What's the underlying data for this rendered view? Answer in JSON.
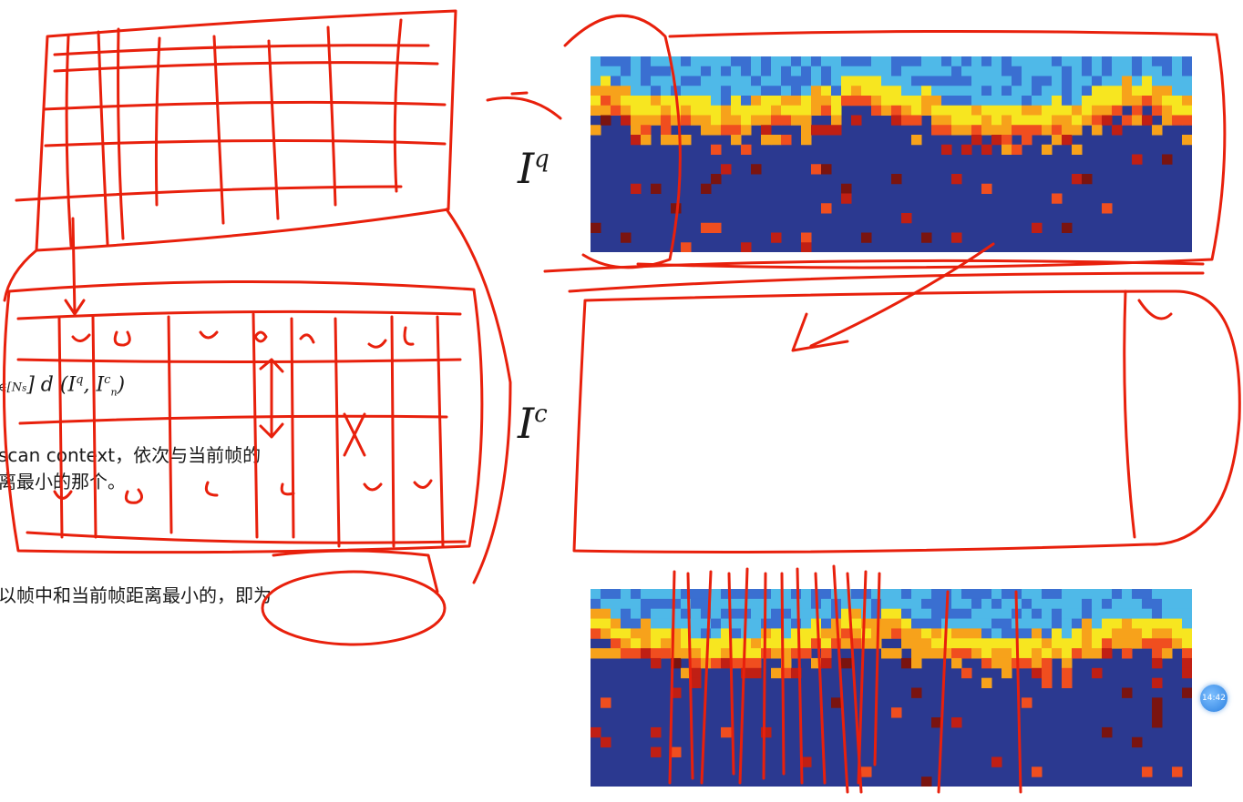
{
  "slide": {
    "label_query": "I",
    "label_query_sup": "q",
    "label_candidate": "I",
    "label_candidate_sup": "c",
    "formula_left": "∈[N",
    "formula_left_sub": "s",
    "formula_right": "] d (I",
    "formula_q": "q",
    "formula_mid": ", I",
    "formula_c": "c",
    "formula_n": "n",
    "formula_close": ")",
    "text_line1": "scan context，依次与当前帧的",
    "text_line2": "离最小的那个。",
    "text_line3": "以帧中和当前帧距离最小的，即为"
  },
  "overlay": {
    "badge_label": "14:42"
  },
  "colors": {
    "annotation": "#e8200c",
    "heatmap_background": "#2b3990",
    "heatmap_palette": [
      "#2b3990",
      "#3a6fd1",
      "#4fb9e8",
      "#9fd9c4",
      "#f7e620",
      "#f7a21b",
      "#f04e1f",
      "#c01f14",
      "#7a1410"
    ]
  }
}
